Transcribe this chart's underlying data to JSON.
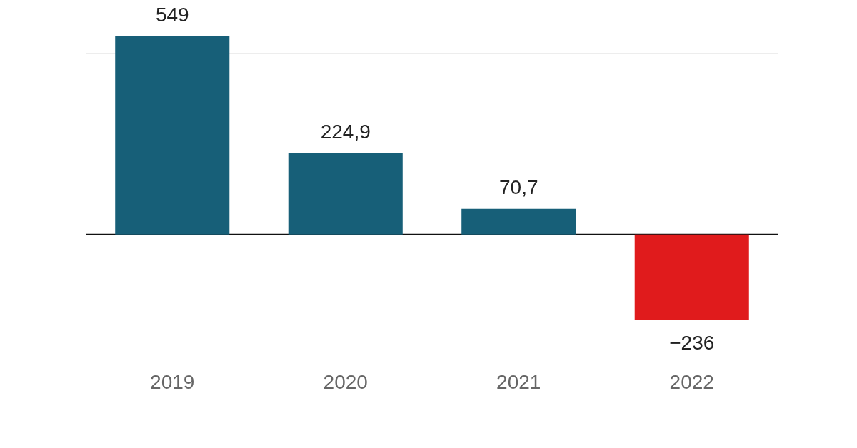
{
  "chart_data": {
    "type": "bar",
    "categories": [
      "2019",
      "2020",
      "2021",
      "2022"
    ],
    "values": [
      549,
      224.9,
      70.7,
      -236
    ],
    "colors": [
      "#175f78",
      "#175f78",
      "#175f78",
      "#e01b1c"
    ],
    "value_labels": [
      "549",
      "224,9",
      "70,7",
      "−236"
    ],
    "ylim": [
      -236,
      549
    ],
    "ref_lines": [
      {
        "axis": "y",
        "value": 500,
        "color": "#e3e3e3"
      },
      {
        "axis": "y",
        "value": 0,
        "color": "#111111"
      }
    ],
    "tick_labels": "x",
    "legend": false
  }
}
